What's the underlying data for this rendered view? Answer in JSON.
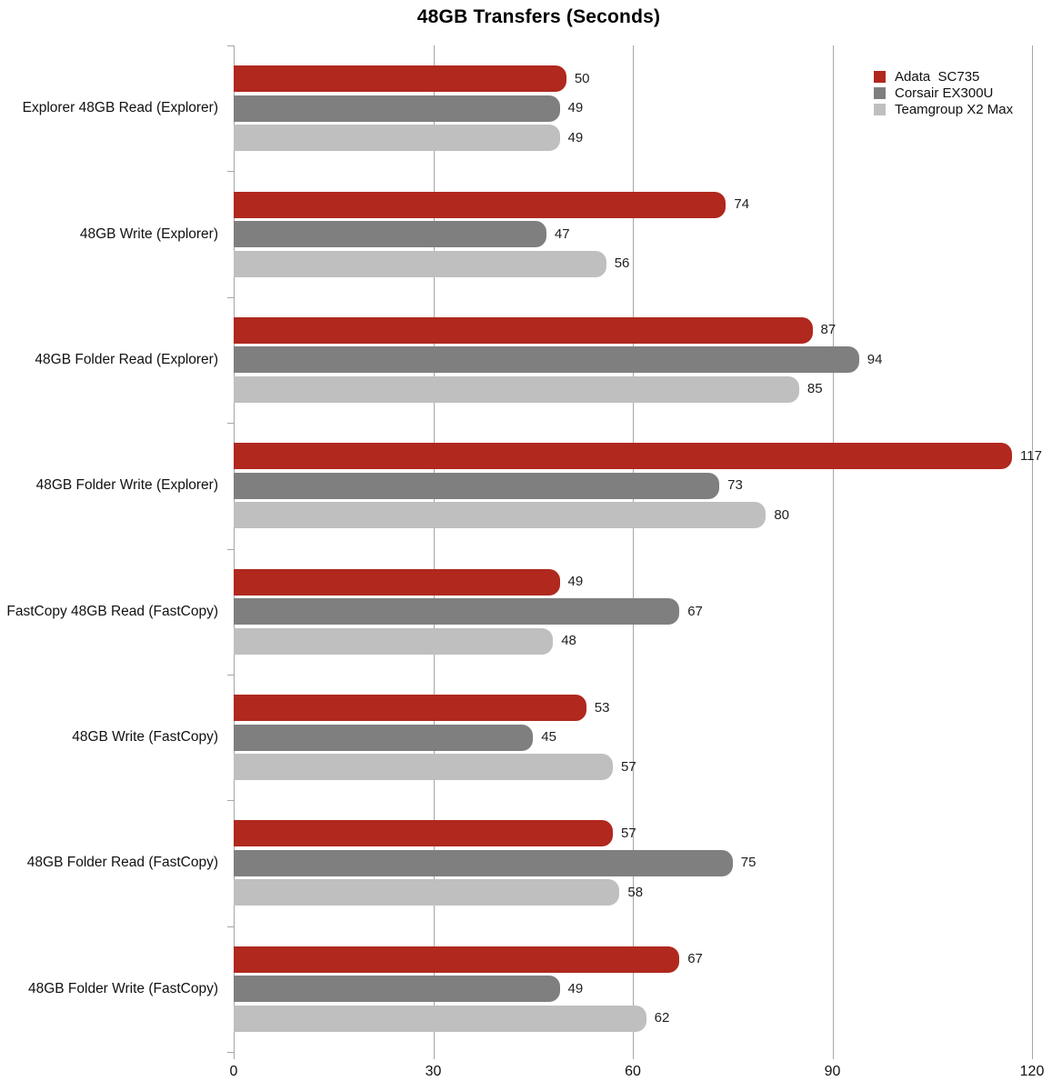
{
  "chart_data": {
    "type": "bar",
    "orientation": "horizontal",
    "title": "48GB Transfers (Seconds)",
    "categories": [
      "Explorer 48GB Read (Explorer)",
      "48GB Write (Explorer)",
      "48GB Folder Read (Explorer)",
      "48GB Folder Write (Explorer)",
      "FastCopy 48GB Read (FastCopy)",
      "48GB Write (FastCopy)",
      "48GB Folder Read (FastCopy)",
      "48GB Folder Write (FastCopy)"
    ],
    "series": [
      {
        "name": "Adata  SC735",
        "color": "#B0281E",
        "values": [
          50,
          74,
          87,
          117,
          49,
          53,
          57,
          67
        ]
      },
      {
        "name": "Corsair EX300U",
        "color": "#7F7F7F",
        "values": [
          49,
          47,
          94,
          73,
          67,
          45,
          75,
          49
        ]
      },
      {
        "name": "Teamgroup X2 Max",
        "color": "#BFBFBF",
        "values": [
          49,
          56,
          85,
          80,
          48,
          57,
          58,
          62
        ]
      }
    ],
    "xlabel": "",
    "ylabel": "",
    "xlim": [
      0,
      120
    ],
    "xticks": [
      0,
      30,
      60,
      90,
      120
    ],
    "grid": "vertical",
    "legend_position": "top-right",
    "value_labels": true
  },
  "colors": {
    "background": "#FFFFFF",
    "grid": "#A6A6A6",
    "text": "#111111",
    "value_label_text": "#1F1F1F"
  }
}
